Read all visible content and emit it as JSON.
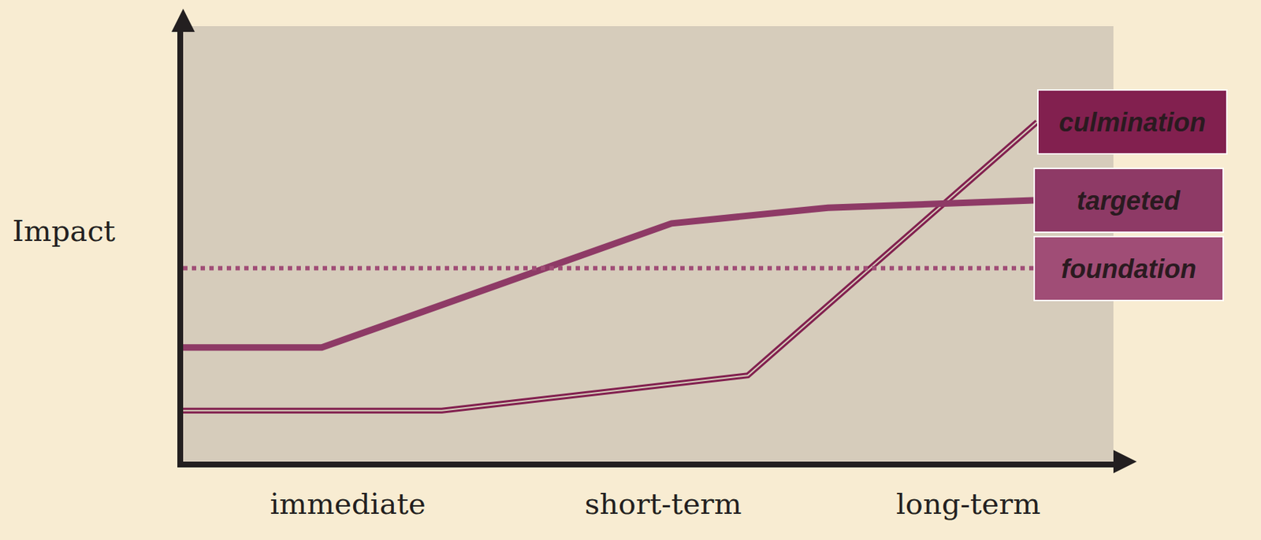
{
  "chart_data": {
    "type": "line",
    "y_label": "Impact",
    "xlim": [
      0,
      100
    ],
    "ylim": [
      0,
      100
    ],
    "xticks": [
      {
        "value": 17.7,
        "label": "immediate"
      },
      {
        "value": 51.6,
        "label": "short-term"
      },
      {
        "value": 84.4,
        "label": "long-term"
      }
    ],
    "tick_labels": "x",
    "grid": false,
    "series": [
      {
        "name": "culmination",
        "color": "#82204f",
        "line_style": "double",
        "x": [
          0,
          27.8,
          60.7,
          91.8
        ],
        "values": [
          11.7,
          11.7,
          19.8,
          78
        ]
      },
      {
        "name": "targeted",
        "color": "#8e3a66",
        "line_style": "solid",
        "x": [
          0,
          14.9,
          52.5,
          69.3,
          91.4
        ],
        "values": [
          26.2,
          26.2,
          54.7,
          58.3,
          60
        ]
      },
      {
        "name": "foundation",
        "color": "#a04d76",
        "line_style": "dotted",
        "x": [
          0,
          91.4
        ],
        "values": [
          44.4,
          44.4
        ]
      }
    ]
  }
}
